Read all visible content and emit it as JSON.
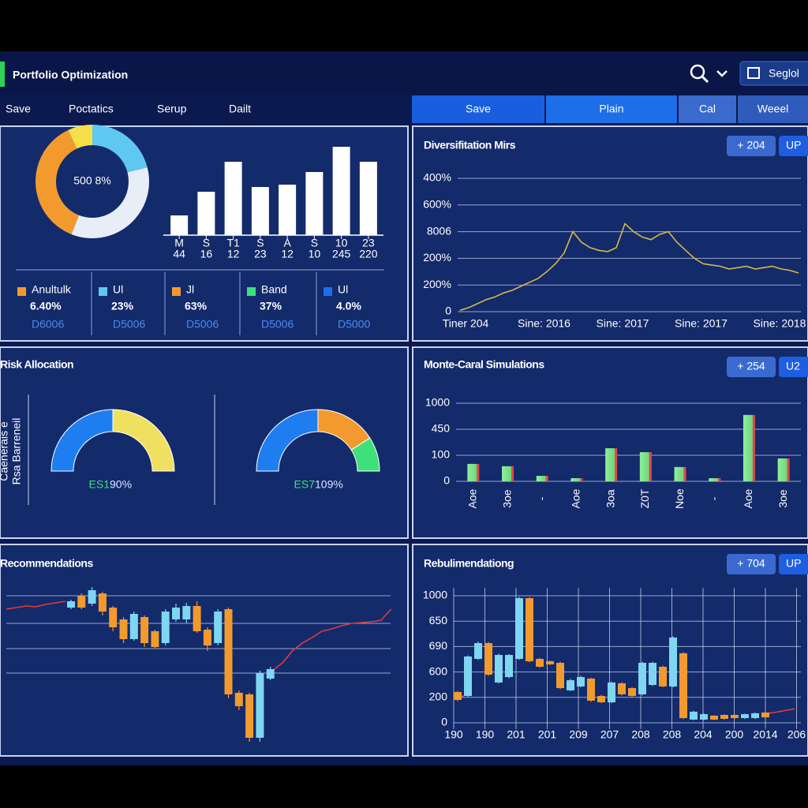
{
  "header": {
    "title": "Portfolio Optimization",
    "button": "Seglol"
  },
  "menu": [
    "Save",
    "Poctatics",
    "Serup",
    "Dailt"
  ],
  "tabs": [
    "Save",
    "Plain",
    "Cal",
    "Weeel"
  ],
  "panels": [
    {
      "donut": {
        "type": "pie",
        "label": "500 8%",
        "values": [
          21,
          35,
          37,
          7
        ],
        "colors": [
          "#5ec8f0",
          "#e8eef8",
          "#f29a2e",
          "#f5e04a"
        ]
      },
      "bars": {
        "type": "bar",
        "categories": [
          "M",
          "S",
          "T1",
          "S",
          "A",
          "S",
          "10",
          "23"
        ],
        "sublabels": [
          "44",
          "16",
          "12",
          "23",
          "12",
          "10",
          "245",
          "220"
        ],
        "values": [
          25,
          55,
          93,
          61,
          64,
          80,
          112,
          93
        ],
        "ylim": [
          0,
          120
        ],
        "color": "#ffffff"
      },
      "stats": [
        {
          "label": "Anultulk",
          "value": "6.40%",
          "sub": "D6006",
          "color": "#f29a2e"
        },
        {
          "label": "Ul",
          "value": "23%",
          "sub": "D5006",
          "color": "#5ec8f0"
        },
        {
          "label": "Jl",
          "value": "63%",
          "sub": "D5006",
          "color": "#f29a2e"
        },
        {
          "label": "Band",
          "value": "37%",
          "sub": "D5006",
          "color": "#3ee07a"
        },
        {
          "label": "Ul",
          "value": "4.0%",
          "sub": "D5000",
          "color": "#1e6ef0"
        }
      ]
    },
    {
      "title": "Diversifitation Mirs",
      "badges": [
        "+ 204",
        "UP"
      ],
      "chart": {
        "type": "line",
        "color": "#d4b84a",
        "ylim": [
          0,
          500
        ],
        "yticks": [
          0,
          {
            "value": 100,
            "label": "200%"
          },
          {
            "value": 200,
            "label": "200%"
          },
          {
            "value": 300,
            "label": "8006"
          },
          {
            "value": 400,
            "label": "600%"
          },
          {
            "value": 500,
            "label": "400%"
          }
        ],
        "x_labels": [
          "Tiner 204",
          "Sine: 2016",
          "Sine: 2017",
          "Sine: 2017",
          "Sine: 2018"
        ],
        "values": [
          5,
          15,
          30,
          45,
          55,
          70,
          80,
          95,
          110,
          125,
          150,
          180,
          220,
          300,
          260,
          240,
          230,
          225,
          240,
          330,
          300,
          280,
          270,
          290,
          300,
          260,
          230,
          200,
          180,
          175,
          170,
          160,
          165,
          170,
          160,
          165,
          170,
          160,
          155,
          145
        ]
      }
    },
    {
      "title": "Risk Allocation",
      "side_labels": [
        "Rsa Barreneil",
        "Caenerais e"
      ],
      "gauges": [
        {
          "type": "gauge",
          "code": "ES1",
          "label": "90%",
          "values": [
            50,
            50
          ],
          "colors": [
            "#1e7ef0",
            "#f0e060"
          ]
        },
        {
          "type": "gauge",
          "code": "ES7",
          "label": "109%",
          "values": [
            50,
            32,
            18
          ],
          "colors": [
            "#1e7ef0",
            "#f29a2e",
            "#3ee07a"
          ]
        }
      ]
    },
    {
      "title": "Monte-Caral Simulations",
      "badges": [
        "+ 254",
        "U2"
      ],
      "chart": {
        "type": "bar",
        "color": "#7de08a",
        "ylim": [
          0,
          300
        ],
        "yticks": [
          0,
          100,
          {
            "value": 200,
            "label": "450"
          },
          {
            "value": 300,
            "label": "1000"
          }
        ],
        "categories": [
          "Aoe",
          "3oe",
          "-",
          "Aoe",
          "3oa",
          "Z0T",
          "Noe",
          "-",
          "Aoe",
          "3oe"
        ],
        "values": [
          67,
          58,
          21,
          12,
          127,
          112,
          55,
          12,
          255,
          88
        ]
      }
    },
    {
      "title": "Recommendations",
      "chart": {
        "type": "candlestick",
        "ylim": [
          0,
          200
        ],
        "gridlines": [
          185,
          150,
          118,
          87
        ],
        "up_color": "#7fd6f0",
        "down_color": "#f29a2e",
        "line_color": "#e03a3a",
        "open": [
          170,
          185,
          175,
          188,
          170,
          155,
          130,
          158,
          140,
          125,
          155,
          155,
          172,
          142,
          125,
          168,
          62,
          60,
          5,
          80
        ],
        "close": [
          178,
          170,
          192,
          165,
          145,
          130,
          162,
          125,
          120,
          165,
          170,
          172,
          140,
          122,
          165,
          60,
          45,
          5,
          87,
          92
        ],
        "high": [
          180,
          188,
          196,
          190,
          172,
          158,
          165,
          160,
          142,
          168,
          175,
          176,
          178,
          145,
          168,
          170,
          65,
          62,
          90,
          95
        ],
        "low": [
          168,
          168,
          172,
          160,
          140,
          125,
          128,
          120,
          118,
          122,
          152,
          150,
          138,
          115,
          122,
          55,
          40,
          0,
          0,
          78
        ],
        "line": [
          168,
          170,
          172,
          171,
          174,
          176,
          178,
          null,
          null,
          null,
          null,
          null,
          null,
          null,
          null,
          null,
          null,
          null,
          null,
          null,
          null,
          null,
          null,
          null,
          null,
          null,
          null,
          90,
          100,
          115,
          125,
          132,
          140,
          143,
          147,
          150,
          151,
          152,
          154,
          168
        ]
      }
    },
    {
      "title": "Rebulimendationg",
      "badges": [
        "+ 704",
        "UP"
      ],
      "chart": {
        "type": "candlestick",
        "ylim": [
          0,
          1000
        ],
        "up_color": "#7fd6f0",
        "down_color": "#f29a2e",
        "line_color": "#e03a3a",
        "yticks": [
          0,
          200,
          {
            "value": 400,
            "label": "600"
          },
          {
            "value": 600,
            "label": "690"
          },
          {
            "value": 800,
            "label": "650"
          },
          1000
        ],
        "x_labels": [
          "190",
          "190",
          "201",
          "201",
          "209",
          "207",
          "208",
          "208",
          "204",
          "200",
          "2014",
          "206"
        ],
        "open": [
          242,
          211,
          503,
          627,
          317,
          360,
          503,
          981,
          503,
          484,
          472,
          255,
          286,
          348,
          211,
          161,
          311,
          273,
          224,
          298,
          441,
          286,
          547,
          25,
          25,
          56,
          62,
          62,
          37,
          37,
          81
        ],
        "close": [
          180,
          522,
          627,
          379,
          534,
          534,
          981,
          484,
          441,
          460,
          273,
          335,
          360,
          174,
          161,
          317,
          224,
          211,
          472,
          472,
          286,
          671,
          37,
          87,
          68,
          25,
          31,
          37,
          68,
          75,
          43
        ],
        "high": [
          250,
          530,
          640,
          635,
          545,
          540,
          990,
          990,
          510,
          490,
          480,
          345,
          370,
          355,
          220,
          325,
          320,
          280,
          480,
          480,
          450,
          680,
          555,
          95,
          75,
          60,
          65,
          65,
          72,
          80,
          85
        ],
        "low": [
          170,
          205,
          495,
          370,
          310,
          350,
          495,
          475,
          435,
          455,
          265,
          250,
          280,
          165,
          155,
          155,
          215,
          205,
          215,
          290,
          280,
          280,
          30,
          20,
          20,
          20,
          25,
          30,
          30,
          30,
          40
        ],
        "line": [
          205,
          210,
          null,
          null,
          null,
          null,
          null,
          null,
          null,
          null,
          null,
          null,
          null,
          null,
          null,
          null,
          null,
          null,
          null,
          null,
          null,
          null,
          null,
          null,
          null,
          null,
          null,
          null,
          null,
          null,
          70,
          80,
          95,
          110
        ]
      }
    }
  ]
}
